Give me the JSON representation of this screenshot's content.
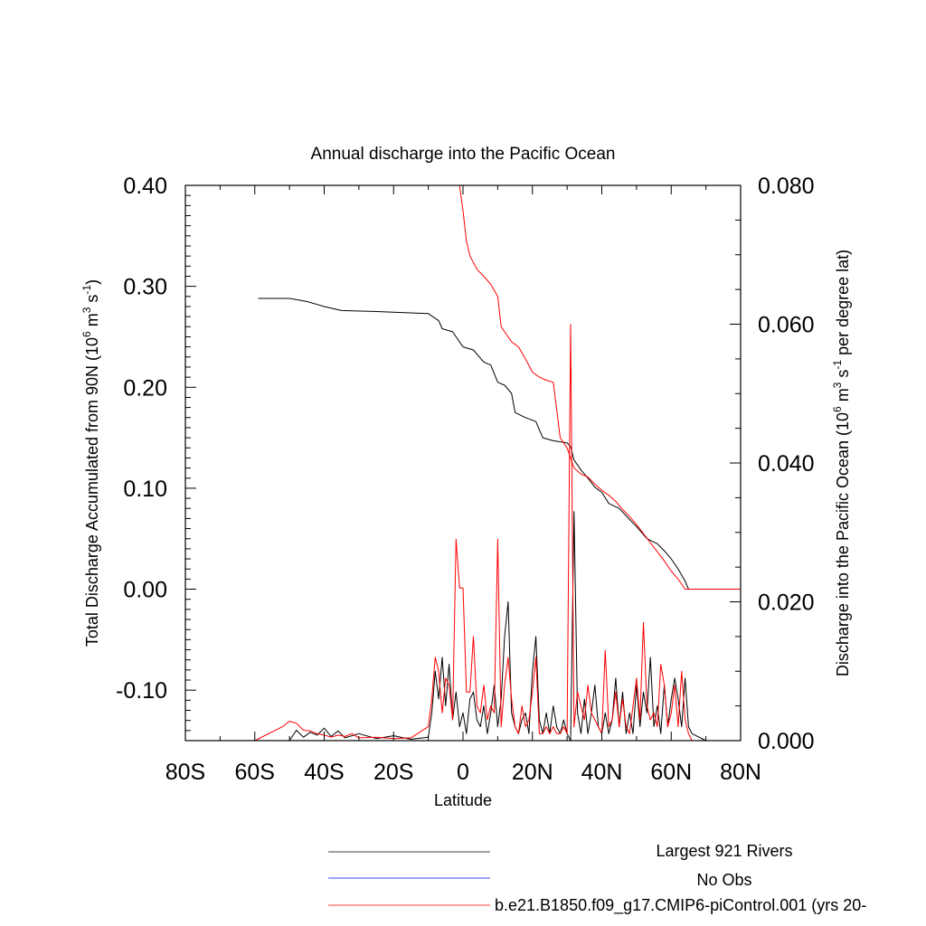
{
  "chart_data": {
    "type": "line",
    "title": "Annual discharge into the Pacific Ocean",
    "xlabel": "Latitude",
    "ylabel_left": {
      "text": "Total Discharge Accumulated from 90N (10",
      "sup1": "6",
      "mid1": " m",
      "sup2": "3",
      "mid2": " s",
      "sup3": "-1",
      "end": ")"
    },
    "ylabel_right": {
      "text": "Discharge into the Pacific Ocean (10",
      "sup1": "6",
      "mid1": " m",
      "sup2": "3",
      "mid2": " s",
      "sup3": "-1",
      "end": " per degree lat)"
    },
    "xlim": [
      -80,
      80
    ],
    "ylim_left": [
      -0.15,
      0.4
    ],
    "ylim_right": [
      0.0,
      0.08
    ],
    "x_ticks": [
      {
        "value": -80,
        "label": "80S"
      },
      {
        "value": -60,
        "label": "60S"
      },
      {
        "value": -40,
        "label": "40S"
      },
      {
        "value": -20,
        "label": "20S"
      },
      {
        "value": 0,
        "label": "0"
      },
      {
        "value": 20,
        "label": "20N"
      },
      {
        "value": 40,
        "label": "40N"
      },
      {
        "value": 60,
        "label": "60N"
      },
      {
        "value": 80,
        "label": "80N"
      }
    ],
    "y_left_ticks": [
      {
        "value": 0.4,
        "label": "0.40"
      },
      {
        "value": 0.3,
        "label": "0.30"
      },
      {
        "value": 0.2,
        "label": "0.20"
      },
      {
        "value": 0.1,
        "label": "0.10"
      },
      {
        "value": 0.0,
        "label": "0.00"
      },
      {
        "value": -0.1,
        "label": "-0.10"
      }
    ],
    "y_right_ticks": [
      {
        "value": 0.08,
        "label": "0.080"
      },
      {
        "value": 0.06,
        "label": "0.060"
      },
      {
        "value": 0.04,
        "label": "0.040"
      },
      {
        "value": 0.02,
        "label": "0.020"
      },
      {
        "value": 0.0,
        "label": "0.000"
      }
    ],
    "legend": {
      "placement": "bottom",
      "entries": [
        {
          "label": "Largest 921 Rivers",
          "color": "#000000"
        },
        {
          "label": "No Obs",
          "color": "#0000ff"
        },
        {
          "label": "b.e21.B1850.f09_g17.CMIP6-piControl.001 (yrs 20-",
          "color": "#ff0000"
        }
      ]
    },
    "series": [
      {
        "name": "Largest 921 Rivers",
        "axis": "left",
        "color": "#000000",
        "x": [
          -59,
          -50,
          -45,
          -42,
          -40,
          -35,
          -25,
          -10,
          -7,
          -6,
          -3,
          0,
          3,
          6,
          8,
          10,
          12,
          14,
          15,
          18,
          21,
          22,
          23,
          26,
          30,
          31,
          32,
          34,
          36,
          38,
          40,
          42,
          45,
          48,
          50,
          53,
          56,
          58,
          60,
          62,
          64,
          65,
          70,
          80
        ],
        "y": [
          0.288,
          0.288,
          0.285,
          0.282,
          0.28,
          0.276,
          0.275,
          0.273,
          0.266,
          0.258,
          0.255,
          0.24,
          0.237,
          0.225,
          0.222,
          0.205,
          0.202,
          0.194,
          0.175,
          0.17,
          0.166,
          0.158,
          0.15,
          0.147,
          0.145,
          0.141,
          0.128,
          0.118,
          0.11,
          0.101,
          0.096,
          0.085,
          0.08,
          0.069,
          0.062,
          0.05,
          0.045,
          0.038,
          0.03,
          0.02,
          0.008,
          0.0,
          0.0,
          0.0
        ]
      },
      {
        "name": "b.e21.B1850.f09_g17.CMIP6-piControl.001 (yrs 20-",
        "axis": "left",
        "color": "#ff0000",
        "x": [
          -1,
          0,
          1,
          2,
          4,
          6,
          8,
          10,
          11,
          12,
          14,
          16,
          18,
          20,
          22,
          24,
          26,
          28,
          30,
          31,
          32,
          34,
          36,
          38,
          40,
          42,
          44,
          46,
          48,
          50,
          52,
          54,
          56,
          58,
          60,
          62,
          64,
          66,
          70,
          80
        ],
        "y": [
          0.4,
          0.375,
          0.345,
          0.33,
          0.317,
          0.31,
          0.302,
          0.29,
          0.26,
          0.255,
          0.245,
          0.24,
          0.228,
          0.215,
          0.21,
          0.207,
          0.205,
          0.15,
          0.14,
          0.13,
          0.12,
          0.114,
          0.111,
          0.104,
          0.098,
          0.093,
          0.087,
          0.079,
          0.072,
          0.064,
          0.055,
          0.046,
          0.037,
          0.028,
          0.018,
          0.01,
          0.0,
          0.0,
          0.0,
          0.0
        ]
      },
      {
        "name": "Largest 921 Rivers",
        "axis": "right",
        "color": "#000000",
        "x": [
          -80,
          -50,
          -48,
          -46,
          -44,
          -42,
          -40,
          -38,
          -36,
          -34,
          -30,
          -25,
          -20,
          -15,
          -10,
          -9,
          -8,
          -7,
          -6,
          -5,
          -4,
          -3,
          -2,
          -1,
          0,
          1,
          2,
          3,
          4,
          5,
          6,
          7,
          8,
          9,
          10,
          11,
          12,
          13,
          14,
          15,
          16,
          17,
          18,
          19,
          20,
          21,
          22,
          23,
          24,
          25,
          26,
          27,
          28,
          29,
          30,
          31,
          32,
          33,
          34,
          35,
          36,
          37,
          38,
          39,
          40,
          41,
          42,
          43,
          44,
          45,
          46,
          47,
          48,
          49,
          50,
          51,
          52,
          53,
          54,
          55,
          56,
          57,
          58,
          59,
          60,
          61,
          62,
          63,
          64,
          65,
          66,
          70,
          80
        ],
        "y": [
          0.0,
          0.0,
          0.0015,
          0.0005,
          0.0012,
          0.0008,
          0.0018,
          0.0006,
          0.0014,
          0.0004,
          0.001,
          0.0003,
          0.0007,
          0.0002,
          0.0005,
          0.004,
          0.01,
          0.006,
          0.012,
          0.005,
          0.011,
          0.003,
          0.007,
          0.002,
          0.004,
          0.001,
          0.006,
          0.007,
          0.003,
          0.002,
          0.005,
          0.001,
          0.004,
          0.008,
          0.002,
          0.006,
          0.015,
          0.02,
          0.004,
          0.002,
          0.001,
          0.003,
          0.004,
          0.001,
          0.01,
          0.015,
          0.003,
          0.001,
          0.004,
          0.001,
          0.005,
          0.002,
          0.001,
          0.003,
          0.001,
          0.0,
          0.033,
          0.004,
          0.001,
          0.006,
          0.001,
          0.004,
          0.008,
          0.002,
          0.001,
          0.004,
          0.001,
          0.003,
          0.009,
          0.002,
          0.007,
          0.001,
          0.004,
          0.001,
          0.008,
          0.002,
          0.007,
          0.004,
          0.012,
          0.002,
          0.005,
          0.001,
          0.008,
          0.002,
          0.006,
          0.009,
          0.006,
          0.002,
          0.009,
          0.002,
          0.001,
          0.0,
          0.0
        ]
      },
      {
        "name": "b.e21.B1850.f09_g17.CMIP6-piControl.001 (yrs 20-",
        "axis": "right",
        "color": "#ff0000",
        "x": [
          -80,
          -60,
          -52,
          -50,
          -48,
          -46,
          -44,
          -42,
          -40,
          -38,
          -36,
          -34,
          -32,
          -30,
          -25,
          -20,
          -15,
          -10,
          -9,
          -8,
          -7,
          -6,
          -5,
          -4,
          -3,
          -2,
          -1,
          0,
          1,
          2,
          3,
          4,
          5,
          6,
          7,
          8,
          9,
          10,
          11,
          12,
          13,
          14,
          15,
          16,
          17,
          18,
          19,
          20,
          21,
          22,
          23,
          24,
          25,
          26,
          27,
          28,
          29,
          30,
          31,
          32,
          33,
          34,
          35,
          36,
          37,
          38,
          39,
          40,
          41,
          42,
          43,
          44,
          45,
          46,
          47,
          48,
          49,
          50,
          51,
          52,
          53,
          54,
          55,
          56,
          57,
          58,
          59,
          60,
          61,
          62,
          63,
          64,
          65,
          66,
          70,
          80
        ],
        "y": [
          0.0,
          0.0,
          0.002,
          0.0028,
          0.0025,
          0.0015,
          0.0014,
          0.001,
          0.0008,
          0.0005,
          0.0008,
          0.0006,
          0.001,
          0.0004,
          0.0005,
          0.0003,
          0.0004,
          0.002,
          0.006,
          0.012,
          0.01,
          0.004,
          0.009,
          0.008,
          0.003,
          0.029,
          0.022,
          0.022,
          0.007,
          0.007,
          0.015,
          0.005,
          0.004,
          0.008,
          0.003,
          0.005,
          0.004,
          0.029,
          0.002,
          0.008,
          0.012,
          0.006,
          0.002,
          0.001,
          0.005,
          0.002,
          0.003,
          0.007,
          0.012,
          0.001,
          0.001,
          0.002,
          0.001,
          0.002,
          0.001,
          0.001,
          0.002,
          0.001,
          0.06,
          0.002,
          0.007,
          0.005,
          0.003,
          0.008,
          0.004,
          0.003,
          0.002,
          0.001,
          0.013,
          0.002,
          0.003,
          0.007,
          0.002,
          0.006,
          0.002,
          0.001,
          0.005,
          0.009,
          0.003,
          0.017,
          0.005,
          0.003,
          0.004,
          0.002,
          0.011,
          0.008,
          0.002,
          0.004,
          0.008,
          0.002,
          0.01,
          0.003,
          0.001,
          0.0,
          0.0,
          0.0
        ]
      }
    ]
  }
}
